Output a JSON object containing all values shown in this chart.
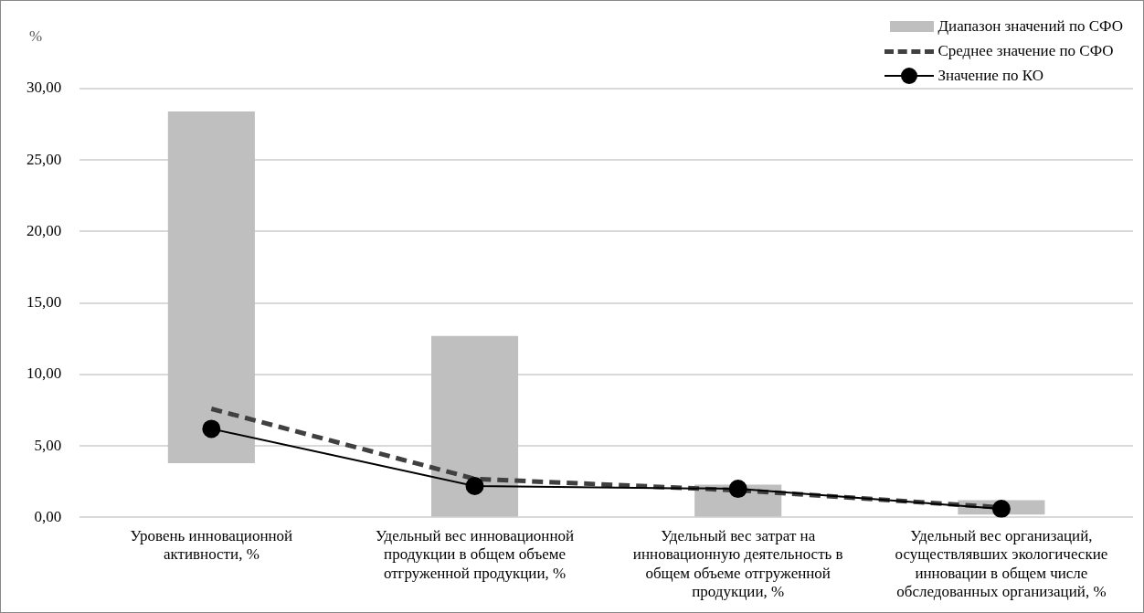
{
  "chart_data": {
    "type": "bar",
    "ylabel": "%",
    "categories": [
      "Уровень инновационной активности, %",
      "Удельный вес инновационной продукции в общем объеме отгруженной продукции, %",
      "Удельный вес затрат на инновационную деятельность в общем объеме отгруженной продукции, %",
      "Удельный вес организаций, осуществлявших экологические инновации в общем числе обследованных организаций, %"
    ],
    "series": [
      {
        "name": "Диапазон значений по СФО",
        "color": "#bfbfbf",
        "base": [
          3.8,
          0,
          0,
          0.2
        ],
        "values": [
          24.6,
          12.7,
          2.3,
          1.0
        ]
      },
      {
        "name": "Среднее значение по СФО",
        "type": "line",
        "color": "#404040",
        "line_style": "dashed",
        "marker": "none",
        "values": [
          7.6,
          2.7,
          1.9,
          0.7
        ]
      },
      {
        "name": "Значение по КО",
        "type": "line",
        "color": "#000000",
        "line_style": "solid",
        "marker": "circle",
        "values": [
          6.2,
          2.2,
          2.0,
          0.6
        ]
      }
    ],
    "ylim": [
      0,
      30
    ],
    "yticks": [
      {
        "value": 0,
        "label": "0,00"
      },
      {
        "value": 5,
        "label": "5,00"
      },
      {
        "value": 10,
        "label": "10,00"
      },
      {
        "value": 15,
        "label": "15,00"
      },
      {
        "value": 20,
        "label": "20,00"
      },
      {
        "value": 25,
        "label": "25,00"
      },
      {
        "value": 30,
        "label": "30,00"
      }
    ],
    "grid": "y",
    "legend": "top right"
  }
}
